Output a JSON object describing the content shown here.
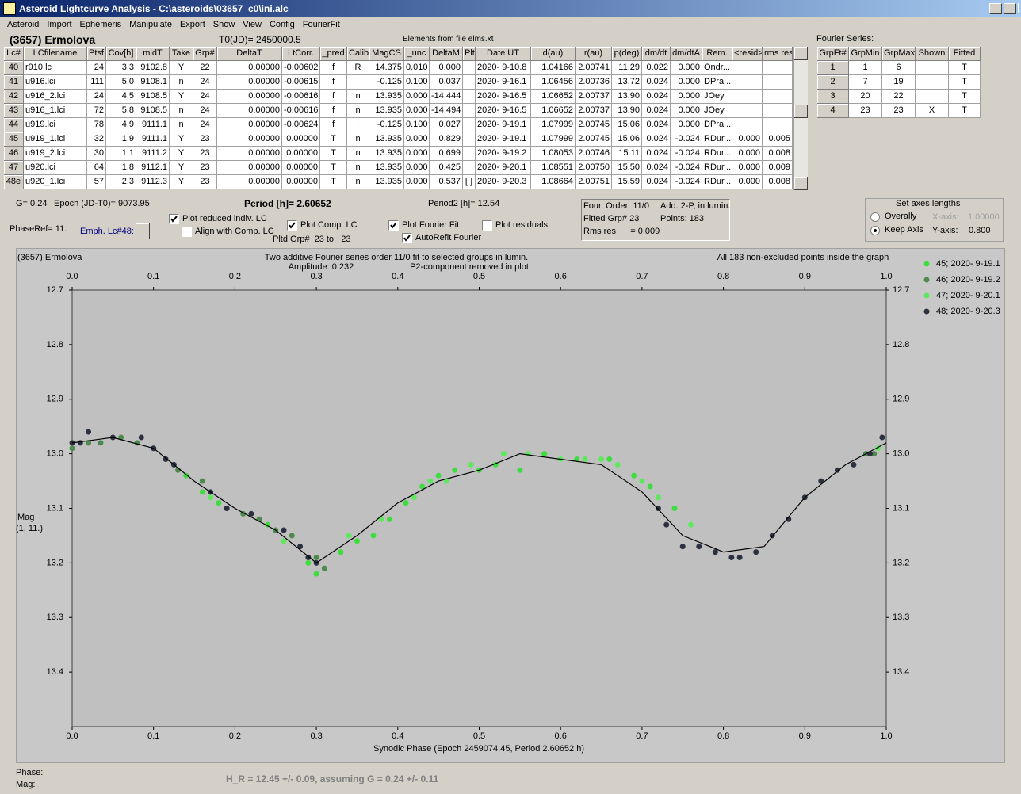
{
  "window": {
    "title": "Asteroid Lightcurve Analysis - C:\\asteroids\\03657_c0\\ini.alc",
    "menu": [
      "Asteroid",
      "Import",
      "Ephemeris",
      "Manipulate",
      "Export",
      "Show",
      "View",
      "Config",
      "FourierFit"
    ]
  },
  "header": {
    "object": "(3657) Ermolova",
    "t0": "T0(JD)= 2450000.5",
    "elements": "Elements from file elms.xt"
  },
  "table": {
    "columns": [
      "Lc#",
      "LCfilename",
      "Ptsf",
      "Cov[h]",
      "midT",
      "Take",
      "Grp#",
      "DeltaT",
      "LtCorr.",
      "_pred",
      "Calib.",
      "MagCS",
      "_unc",
      "DeltaM",
      "Plt",
      "Date UT",
      "d(au)",
      "r(au)",
      "p(deg)",
      "dm/dt",
      "dm/dtA",
      "Rem.",
      "<resid>",
      "rms res"
    ],
    "rows": [
      [
        "40",
        "r910.lc",
        "24",
        "3.3",
        "9102.8",
        "Y",
        "22",
        "0.00000",
        "-0.00602",
        "f",
        "R",
        "14.375",
        "0.010",
        "0.000",
        null,
        "2020- 9-10.8",
        "1.04166",
        "2.00741",
        "11.29",
        "0.022",
        "0.000",
        "Ondr...",
        null,
        null
      ],
      [
        "41",
        "u916.lci",
        "111",
        "5.0",
        "9108.1",
        "n",
        "24",
        "0.00000",
        "-0.00615",
        "f",
        "i",
        "-0.125",
        "0.100",
        "0.037",
        null,
        "2020- 9-16.1",
        "1.06456",
        "2.00736",
        "13.72",
        "0.024",
        "0.000",
        "DPra...",
        null,
        null
      ],
      [
        "42",
        "u916_2.lci",
        "24",
        "4.5",
        "9108.5",
        "Y",
        "24",
        "0.00000",
        "-0.00616",
        "f",
        "n",
        "13.935",
        "0.000",
        "-14.444",
        null,
        "2020- 9-16.5",
        "1.06652",
        "2.00737",
        "13.90",
        "0.024",
        "0.000",
        "JOey",
        null,
        null
      ],
      [
        "43",
        "u916_1.lci",
        "72",
        "5.8",
        "9108.5",
        "n",
        "24",
        "0.00000",
        "-0.00616",
        "f",
        "n",
        "13.935",
        "0.000",
        "-14.494",
        null,
        "2020- 9-16.5",
        "1.06652",
        "2.00737",
        "13.90",
        "0.024",
        "0.000",
        "JOey",
        null,
        null
      ],
      [
        "44",
        "u919.lci",
        "78",
        "4.9",
        "9111.1",
        "n",
        "24",
        "0.00000",
        "-0.00624",
        "f",
        "i",
        "-0.125",
        "0.100",
        "0.027",
        null,
        "2020- 9-19.1",
        "1.07999",
        "2.00745",
        "15.06",
        "0.024",
        "0.000",
        "DPra...",
        null,
        null
      ],
      [
        "45",
        "u919_1.lci",
        "32",
        "1.9",
        "9111.1",
        "Y",
        "23",
        "0.00000",
        "0.00000",
        "T",
        "n",
        "13.935",
        "0.000",
        "0.829",
        null,
        "2020- 9-19.1",
        "1.07999",
        "2.00745",
        "15.06",
        "0.024",
        "-0.024",
        "RDur...",
        "0.000",
        "0.005"
      ],
      [
        "46",
        "u919_2.lci",
        "30",
        "1.1",
        "9111.2",
        "Y",
        "23",
        "0.00000",
        "0.00000",
        "T",
        "n",
        "13.935",
        "0.000",
        "0.699",
        null,
        "2020- 9-19.2",
        "1.08053",
        "2.00746",
        "15.11",
        "0.024",
        "-0.024",
        "RDur...",
        "0.000",
        "0.008"
      ],
      [
        "47",
        "u920.lci",
        "64",
        "1.8",
        "9112.1",
        "Y",
        "23",
        "0.00000",
        "0.00000",
        "T",
        "n",
        "13.935",
        "0.000",
        "0.425",
        null,
        "2020- 9-20.1",
        "1.08551",
        "2.00750",
        "15.50",
        "0.024",
        "-0.024",
        "RDur...",
        "0.000",
        "0.009"
      ],
      [
        "48e",
        "u920_1.lci",
        "57",
        "2.3",
        "9112.3",
        "Y",
        "23",
        "0.00000",
        "0.00000",
        "T",
        "n",
        "13.935",
        "0.000",
        "0.537",
        "[ ]",
        "2020- 9-20.3",
        "1.08664",
        "2.00751",
        "15.59",
        "0.024",
        "-0.024",
        "RDur...",
        "0.000",
        "0.008"
      ]
    ]
  },
  "fourier": {
    "label": "Fourier Series:",
    "columns": [
      "GrpFt#",
      "GrpMin",
      "GrpMax",
      "Shown",
      "Fitted"
    ],
    "rows": [
      [
        "1",
        "1",
        "6",
        null,
        "T"
      ],
      [
        "2",
        "7",
        "19",
        null,
        "T"
      ],
      [
        "3",
        "20",
        "22",
        null,
        "T"
      ],
      [
        "4",
        "23",
        "23",
        "X",
        "T"
      ]
    ]
  },
  "controls": {
    "g": "G= 0.24",
    "epoch": "Epoch (JD-T0)= 9073.95",
    "period": "Period [h]= 2.60652",
    "period2": "Period2 [h]= 12.54",
    "phase_ref": "PhaseRef= 11.",
    "emph": "Emph. Lc#48:",
    "pltd_grp": "Pltd Grp#  23 to   23",
    "checkboxes": [
      {
        "label": "Plot reduced indiv. LC",
        "checked": true
      },
      {
        "label": "Align with Comp. LC",
        "checked": false
      },
      {
        "label": "Plot Comp. LC",
        "checked": true
      },
      {
        "label": "Plot Fourier Fit",
        "checked": true
      },
      {
        "label": "Plot residuals",
        "checked": false
      },
      {
        "label": "AutoRefit Fourier",
        "checked": true
      }
    ],
    "info": [
      "Four. Order: 11/0",
      "Add. 2-P, in lumin.",
      "Fitted Grp# 23",
      "Points: 183",
      "Rms res      = 0.009"
    ],
    "axes": {
      "title": "Set axes lengths",
      "radios": [
        {
          "label": "Overally",
          "checked": false
        },
        {
          "label": "Keep Axis",
          "checked": true
        }
      ],
      "x_label": "X-axis:",
      "x_value": "1.00000",
      "x_enabled": false,
      "y_label": "Y-axis:",
      "y_value": "0.800",
      "y_enabled": true
    }
  },
  "chart_data": {
    "type": "scatter",
    "title": "(3657) Ermolova",
    "subtitle": "Two additive Fourier series order 11/0 fit to selected groups in lumin.",
    "annotations": [
      "Amplitude: 0.232",
      "P2-component removed in plot",
      "All 183 non-excluded points inside the graph"
    ],
    "xlabel": "Synodic Phase (Epoch 2459074.45, Period 2.60652 h)",
    "ylabel": "Mag",
    "ylabel_note": "(1, 11.)",
    "xlim": [
      0,
      1
    ],
    "ylim": [
      12.7,
      13.5
    ],
    "y_inverted": true,
    "grid": false,
    "xticks": [
      {
        "value": 0,
        "label": "0.0"
      },
      0.1,
      0.2,
      0.3,
      0.4,
      0.5,
      0.6,
      0.7,
      0.8,
      0.9,
      {
        "value": 1,
        "label": "1.0"
      }
    ],
    "yticks": [
      12.7,
      12.8,
      12.9,
      {
        "value": 13,
        "label": "13.0"
      },
      13.1,
      13.2,
      13.3,
      13.4
    ],
    "series": [
      {
        "name": "45; 2020- 9-19.1",
        "color": "#3fdc3f",
        "x": [
          0.14,
          0.16,
          0.18,
          0.24,
          0.29,
          0.3,
          0.33,
          0.35,
          0.37,
          0.39,
          0.41,
          0.43,
          0.45,
          0.47,
          0.5,
          0.52,
          0.55,
          0.58,
          0.62,
          0.66,
          0.69,
          0.71,
          0.74
        ],
        "values": [
          13.04,
          13.07,
          13.09,
          13.13,
          13.2,
          13.22,
          13.18,
          13.16,
          13.15,
          13.12,
          13.09,
          13.06,
          13.04,
          13.03,
          13.03,
          13.02,
          13.03,
          13.0,
          13.01,
          13.01,
          13.04,
          13.06,
          13.1
        ]
      },
      {
        "name": "46; 2020- 9-19.2",
        "color": "#4e8a4e",
        "x": [
          0.0,
          0.02,
          0.035,
          0.06,
          0.08,
          0.1,
          0.13,
          0.16,
          0.19,
          0.21,
          0.23,
          0.25,
          0.27,
          0.3,
          0.31,
          0.975,
          0.985
        ],
        "values": [
          12.99,
          12.98,
          12.98,
          12.97,
          12.98,
          12.99,
          13.03,
          13.05,
          13.1,
          13.11,
          13.12,
          13.14,
          13.15,
          13.19,
          13.21,
          13.0,
          13.0
        ]
      },
      {
        "name": "47; 2020- 9-20.1",
        "color": "#5fe85f",
        "x": [
          0.17,
          0.26,
          0.34,
          0.38,
          0.42,
          0.44,
          0.46,
          0.49,
          0.53,
          0.56,
          0.6,
          0.63,
          0.65,
          0.67,
          0.7,
          0.72,
          0.76,
          0.99
        ],
        "values": [
          13.08,
          13.16,
          13.15,
          13.12,
          13.08,
          13.05,
          13.05,
          13.02,
          13.0,
          13.0,
          13.01,
          13.01,
          13.01,
          13.02,
          13.05,
          13.08,
          13.13,
          12.99
        ]
      },
      {
        "name": "48; 2020- 9-20.3",
        "color": "#2b3140",
        "x": [
          0.0,
          0.01,
          0.02,
          0.05,
          0.085,
          0.1,
          0.115,
          0.125,
          0.17,
          0.19,
          0.22,
          0.26,
          0.28,
          0.29,
          0.3,
          0.72,
          0.73,
          0.75,
          0.77,
          0.79,
          0.81,
          0.82,
          0.84,
          0.86,
          0.88,
          0.9,
          0.92,
          0.94,
          0.96,
          0.98,
          0.995
        ],
        "values": [
          12.98,
          12.98,
          12.96,
          12.97,
          12.97,
          12.99,
          13.01,
          13.02,
          13.07,
          13.1,
          13.11,
          13.14,
          13.17,
          13.19,
          13.2,
          13.1,
          13.13,
          13.17,
          13.17,
          13.18,
          13.19,
          13.19,
          13.18,
          13.15,
          13.12,
          13.08,
          13.05,
          13.03,
          13.02,
          13.0,
          12.97
        ]
      }
    ],
    "fit": {
      "color": "#000000",
      "x": [
        0,
        0.05,
        0.1,
        0.15,
        0.2,
        0.25,
        0.3,
        0.35,
        0.4,
        0.45,
        0.5,
        0.55,
        0.6,
        0.65,
        0.7,
        0.75,
        0.8,
        0.85,
        0.9,
        0.95,
        1
      ],
      "values": [
        12.98,
        12.97,
        12.99,
        13.05,
        13.1,
        13.14,
        13.2,
        13.15,
        13.09,
        13.05,
        13.03,
        13.0,
        13.01,
        13.02,
        13.07,
        13.15,
        13.18,
        13.17,
        13.08,
        13.02,
        12.98
      ]
    }
  },
  "footer": {
    "phase": "Phase:",
    "mag": "Mag:",
    "hr": "H_R = 12.45 +/- 0.09, assuming G = 0.24 +/- 0.11"
  }
}
